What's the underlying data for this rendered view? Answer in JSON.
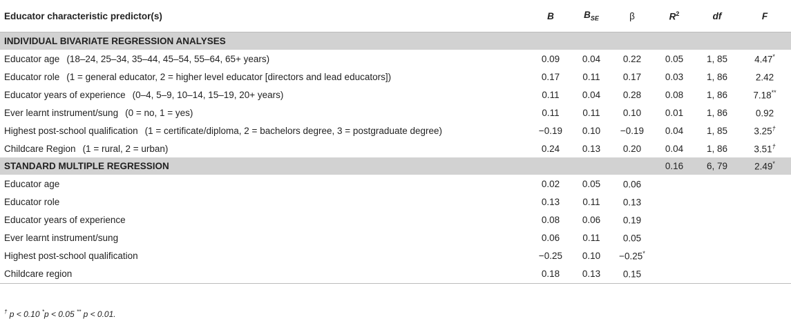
{
  "header": {
    "predictor": "Educator characteristic predictor(s)",
    "B": "B",
    "BSE_main": "B",
    "BSE_sub": "SE",
    "beta": "β",
    "R2_main": "R",
    "R2_sup": "2",
    "df": "df",
    "F": "F"
  },
  "section1": {
    "title": "INDIVIDUAL BIVARIATE REGRESSION ANALYSES"
  },
  "rows1": [
    {
      "label": "Educator age",
      "desc": "(18–24, 25–34, 35–44, 45–54, 55–64, 65+ years)",
      "B": "0.09",
      "BSE": "0.04",
      "beta": "0.22",
      "R2": "0.05",
      "df": "1, 85",
      "F": "4.47",
      "Fsig": "*"
    },
    {
      "label": "Educator role",
      "desc": "(1 = general educator, 2 = higher level educator [directors and lead educators])",
      "B": "0.17",
      "BSE": "0.11",
      "beta": "0.17",
      "R2": "0.03",
      "df": "1, 86",
      "F": "2.42",
      "Fsig": ""
    },
    {
      "label": "Educator years of experience",
      "desc": "(0–4, 5–9, 10–14, 15–19, 20+ years)",
      "B": "0.11",
      "BSE": "0.04",
      "beta": "0.28",
      "R2": "0.08",
      "df": "1, 86",
      "F": "7.18",
      "Fsig": "**"
    },
    {
      "label": "Ever learnt instrument/sung",
      "desc": "(0 = no, 1 = yes)",
      "B": "0.11",
      "BSE": "0.11",
      "beta": "0.10",
      "R2": "0.01",
      "df": "1, 86",
      "F": "0.92",
      "Fsig": ""
    },
    {
      "label": "Highest post-school qualification",
      "desc": "(1 = certificate/diploma, 2 = bachelors degree, 3 = postgraduate degree)",
      "B": "−0.19",
      "BSE": "0.10",
      "beta": "−0.19",
      "R2": "0.04",
      "df": "1, 85",
      "F": "3.25",
      "Fsig": "†"
    },
    {
      "label": "Childcare Region",
      "desc": "(1 = rural, 2 = urban)",
      "B": "0.24",
      "BSE": "0.13",
      "beta": "0.20",
      "R2": "0.04",
      "df": "1, 86",
      "F": "3.51",
      "Fsig": "†"
    }
  ],
  "section2": {
    "title": "STANDARD MULTIPLE REGRESSION",
    "R2": "0.16",
    "df": "6, 79",
    "F": "2.49",
    "Fsig": "*"
  },
  "rows2": [
    {
      "label": "Educator age",
      "B": "0.02",
      "BSE": "0.05",
      "beta": "0.06",
      "betasig": ""
    },
    {
      "label": "Educator role",
      "B": "0.13",
      "BSE": "0.11",
      "beta": "0.13",
      "betasig": ""
    },
    {
      "label": "Educator years of experience",
      "B": "0.08",
      "BSE": "0.06",
      "beta": "0.19",
      "betasig": ""
    },
    {
      "label": "Ever learnt instrument/sung",
      "B": "0.06",
      "BSE": "0.11",
      "beta": "0.05",
      "betasig": ""
    },
    {
      "label": "Highest post-school qualification",
      "B": "−0.25",
      "BSE": "0.10",
      "beta": "−0.25",
      "betasig": "*"
    },
    {
      "label": "Childcare region",
      "B": "0.18",
      "BSE": "0.13",
      "beta": "0.15",
      "betasig": ""
    }
  ],
  "note": {
    "s1": "†",
    "t1": " p < 0.10 ",
    "s2": "*",
    "t2": "p < 0.05 ",
    "s3": "**",
    "t3": " p < 0.01."
  }
}
